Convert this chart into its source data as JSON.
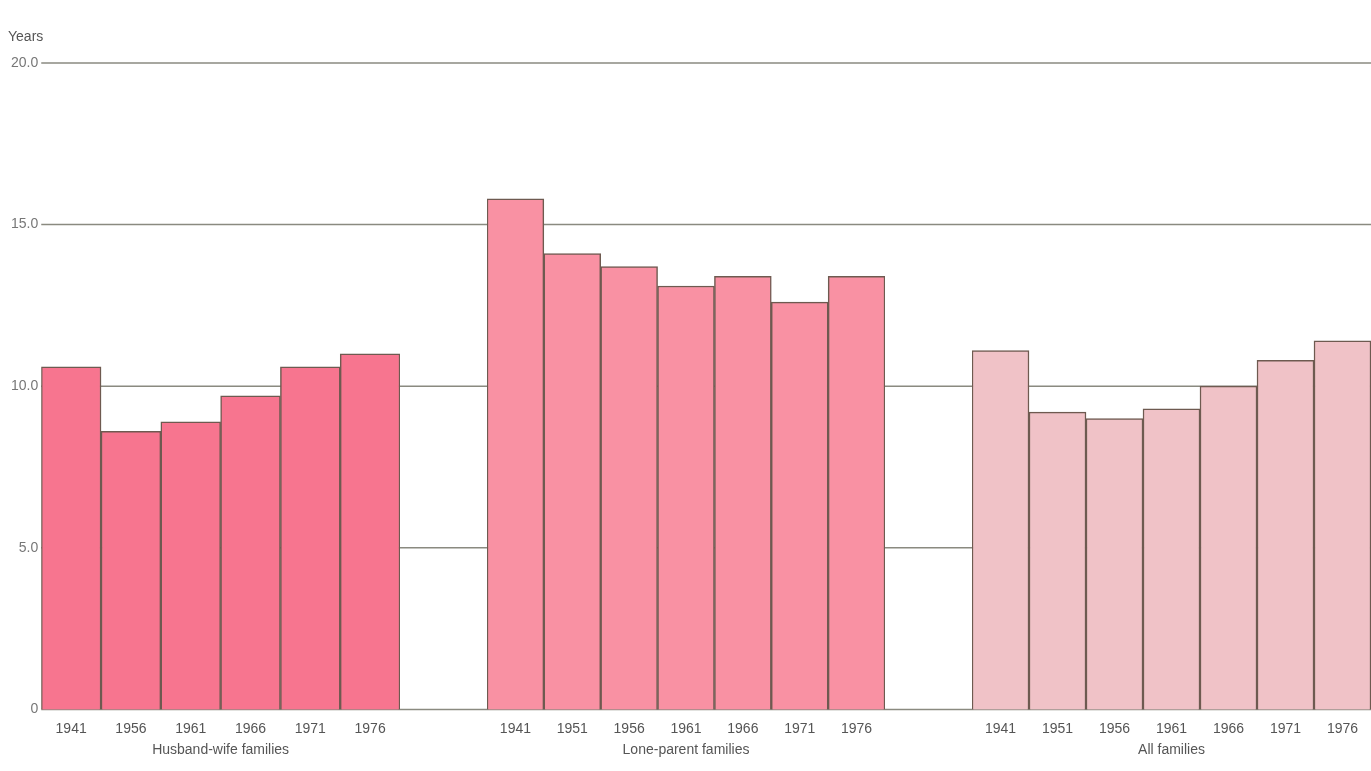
{
  "chart_data": [
    {
      "type": "bar",
      "ylabel": "Years",
      "xlabel": "Husband-wife families",
      "categories": [
        "1941",
        "1956",
        "1961",
        "1966",
        "1971",
        "1976"
      ],
      "series": [
        {
          "color": "#f7758f",
          "values": [
            10.6,
            8.6,
            8.9,
            9.7,
            10.6,
            11.0
          ]
        }
      ],
      "ylim": [
        0,
        20
      ],
      "yticks": [
        {
          "value": 0,
          "label": "0"
        },
        {
          "value": 5,
          "label": "5.0"
        },
        {
          "value": 10,
          "label": "10.0"
        },
        {
          "value": 15,
          "label": "15.0"
        },
        {
          "value": 20,
          "label": "20.0"
        }
      ],
      "grid": "y",
      "legend": false
    },
    {
      "type": "bar",
      "xlabel": "Lone-parent families",
      "categories": [
        "1941",
        "1951",
        "1956",
        "1961",
        "1966",
        "1971",
        "1976"
      ],
      "series": [
        {
          "color": "#f991a3",
          "values": [
            15.8,
            14.1,
            13.7,
            13.1,
            13.4,
            12.6,
            13.4
          ]
        }
      ],
      "ylim": [
        0,
        20
      ],
      "yticks": [
        0,
        5,
        10,
        15,
        20
      ],
      "grid": "y",
      "legend": false,
      "tick_labels": "x"
    },
    {
      "type": "bar",
      "xlabel": "All families",
      "categories": [
        "1941",
        "1951",
        "1956",
        "1961",
        "1966",
        "1971",
        "1976"
      ],
      "series": [
        {
          "color": "#f0c2c7",
          "values": [
            11.1,
            9.2,
            9.0,
            9.3,
            10.0,
            10.8,
            11.4
          ]
        }
      ],
      "ylim": [
        0,
        20
      ],
      "yticks": [
        0,
        5,
        10,
        15,
        20
      ],
      "grid": "y",
      "legend": false,
      "tick_labels": "x"
    }
  ]
}
